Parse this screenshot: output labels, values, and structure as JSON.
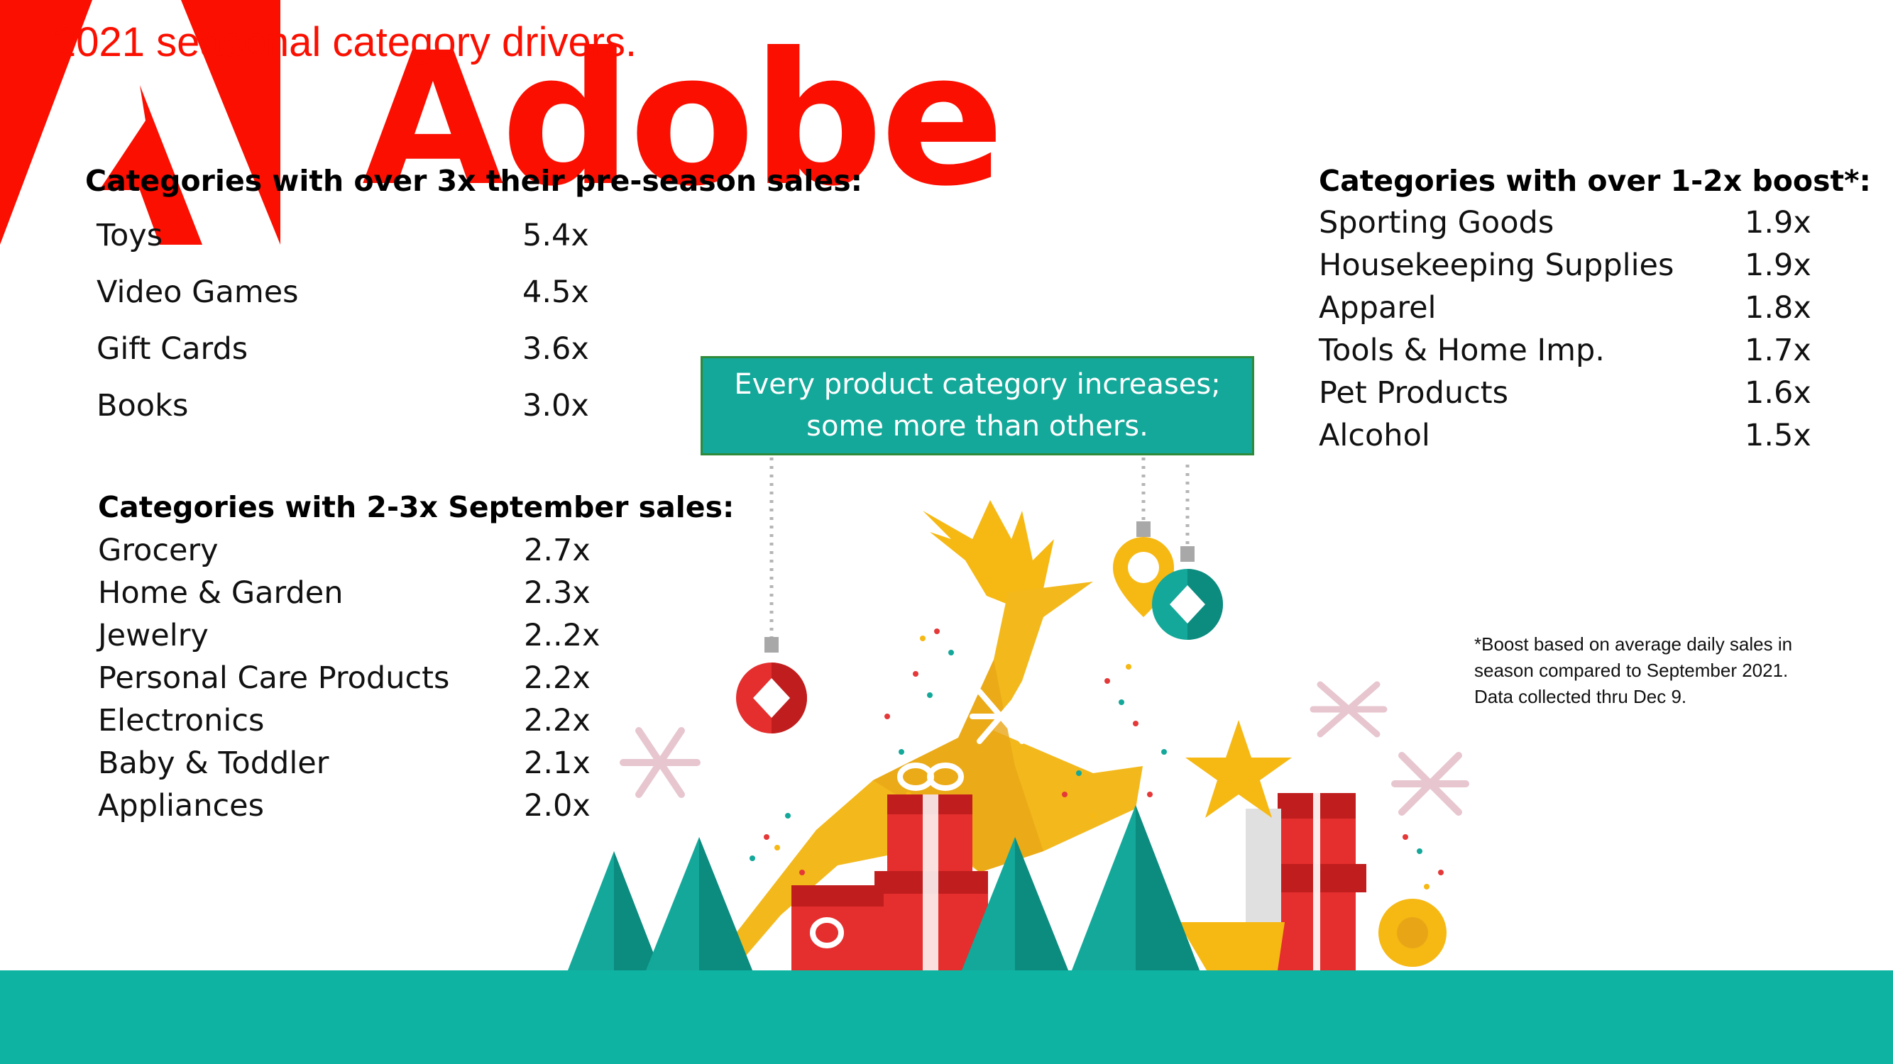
{
  "slide_title": "2021 seasonal category drivers.",
  "logo": {
    "wordmark": "Adobe"
  },
  "brand_color": "#fa0f00",
  "accent_color": "#0fb3a2",
  "section_top": {
    "heading": "Categories with over 3x their pre-season sales:",
    "rows": [
      {
        "name": "Toys",
        "value": "5.4x"
      },
      {
        "name": "Video Games",
        "value": "4.5x"
      },
      {
        "name": "Gift Cards",
        "value": "3.6x"
      },
      {
        "name": "Books",
        "value": "3.0x"
      }
    ]
  },
  "section_mid": {
    "heading": "Categories with 2-3x September sales:",
    "rows": [
      {
        "name": "Grocery",
        "value": "2.7x"
      },
      {
        "name": "Home & Garden",
        "value": "2.3x"
      },
      {
        "name": "Jewelry",
        "value": "2..2x"
      },
      {
        "name": "Personal Care Products",
        "value": "2.2x"
      },
      {
        "name": "Electronics",
        "value": "2.2x"
      },
      {
        "name": "Baby & Toddler",
        "value": "2.1x"
      },
      {
        "name": "Appliances",
        "value": "2.0x"
      }
    ]
  },
  "section_right": {
    "heading": "Categories with over 1-2x boost*:",
    "rows": [
      {
        "name": "Sporting Goods",
        "value": "1.9x"
      },
      {
        "name": "Housekeeping Supplies",
        "value": "1.9x"
      },
      {
        "name": "Apparel",
        "value": "1.8x"
      },
      {
        "name": "Tools & Home Imp.",
        "value": "1.7x"
      },
      {
        "name": "Pet Products",
        "value": "1.6x"
      },
      {
        "name": "Alcohol",
        "value": "1.5x"
      }
    ]
  },
  "callout": {
    "line1": "Every product category increases;",
    "line2": "some more than others."
  },
  "footnote": {
    "line1": "*Boost based on average daily sales in",
    "line2": "season compared to September 2021.",
    "line3": "Data collected thru Dec 9."
  },
  "illustration": {
    "icons": [
      "reindeer-icon",
      "ornament-icon",
      "gift-box-icon",
      "christmas-tree-icon",
      "snowflake-icon",
      "star-icon",
      "stocking-icon"
    ]
  }
}
